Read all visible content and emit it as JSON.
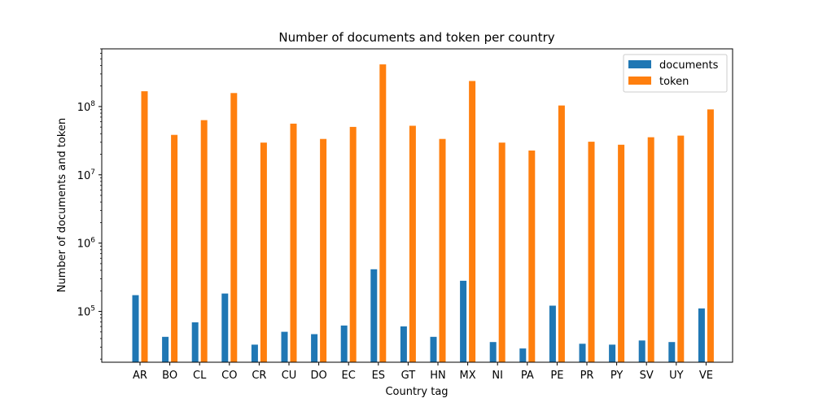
{
  "chart_data": {
    "type": "bar",
    "title": "Number of documents and token per country",
    "xlabel": "Country tag",
    "ylabel": "Number of documents and token",
    "yscale": "log",
    "ylim": [
      18000,
      700000000
    ],
    "y_ticks": [
      {
        "value": 100000,
        "base": "10",
        "exp": "5"
      },
      {
        "value": 1000000,
        "base": "10",
        "exp": "6"
      },
      {
        "value": 10000000,
        "base": "10",
        "exp": "7"
      },
      {
        "value": 100000000,
        "base": "10",
        "exp": "8"
      }
    ],
    "grid": false,
    "legend_position": "top-right",
    "categories": [
      "AR",
      "BO",
      "CL",
      "CO",
      "CR",
      "CU",
      "DO",
      "EC",
      "ES",
      "GT",
      "HN",
      "MX",
      "NI",
      "PA",
      "PE",
      "PR",
      "PY",
      "SV",
      "UY",
      "VE"
    ],
    "series": [
      {
        "name": "documents",
        "color": "#1f77b4",
        "values": [
          175000,
          43000,
          70000,
          185000,
          33000,
          51000,
          47000,
          63000,
          420000,
          61000,
          43000,
          285000,
          36000,
          29000,
          123000,
          34000,
          33000,
          38000,
          36000,
          112000
        ]
      },
      {
        "name": "token",
        "color": "#ff7f0e",
        "values": [
          170000000,
          39000000,
          64000000,
          160000000,
          30000000,
          57000000,
          34000000,
          51000000,
          420000000,
          53000000,
          34000000,
          240000000,
          30000000,
          23000000,
          105000000,
          31000000,
          28000000,
          36000000,
          38000000,
          92000000
        ]
      }
    ]
  }
}
